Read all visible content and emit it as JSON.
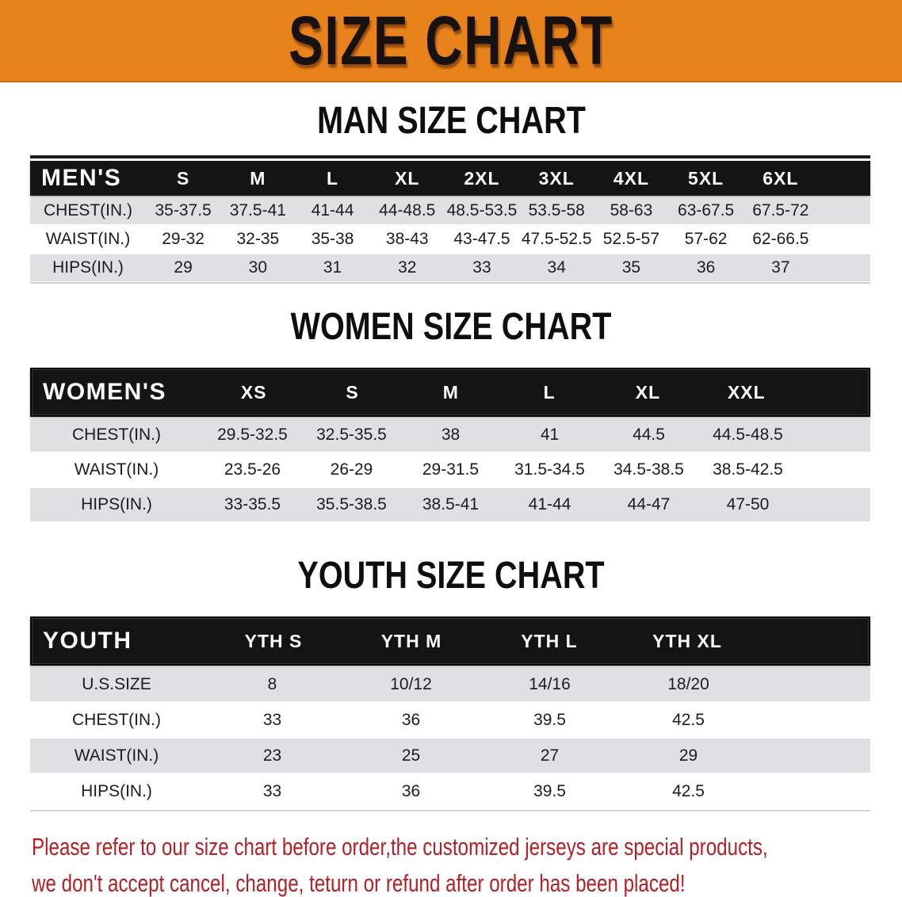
{
  "banner": {
    "title": "SIZE CHART"
  },
  "colors": {
    "banner_orange": "#E8831C",
    "header_black": "#141414",
    "row_gray": "#E0E0E3",
    "note_red": "#B32025"
  },
  "sections": [
    {
      "id": "men",
      "heading": "MAN SIZE CHART",
      "table": {
        "header": [
          "MEN'S",
          "S",
          "M",
          "L",
          "XL",
          "2XL",
          "3XL",
          "4XL",
          "5XL",
          "6XL"
        ],
        "rows": [
          [
            "CHEST(IN.)",
            "35-37.5",
            "37.5-41",
            "41-44",
            "44-48.5",
            "48.5-53.5",
            "53.5-58",
            "58-63",
            "63-67.5",
            "67.5-72"
          ],
          [
            "WAIST(IN.)",
            "29-32",
            "32-35",
            "35-38",
            "38-43",
            "43-47.5",
            "47.5-52.5",
            "52.5-57",
            "57-62",
            "62-66.5"
          ],
          [
            "HIPS(IN.)",
            "29",
            "30",
            "31",
            "32",
            "33",
            "34",
            "35",
            "36",
            "37"
          ]
        ],
        "row_shading": [
          "gray",
          "white",
          "gray"
        ]
      }
    },
    {
      "id": "women",
      "heading": "WOMEN SIZE CHART",
      "table": {
        "header": [
          "WOMEN'S",
          "XS",
          "S",
          "M",
          "L",
          "XL",
          "XXL"
        ],
        "rows": [
          [
            "CHEST(IN.)",
            "29.5-32.5",
            "32.5-35.5",
            "38",
            "41",
            "44.5",
            "44.5-48.5"
          ],
          [
            "WAIST(IN.)",
            "23.5-26",
            "26-29",
            "29-31.5",
            "31.5-34.5",
            "34.5-38.5",
            "38.5-42.5"
          ],
          [
            "HIPS(IN.)",
            "33-35.5",
            "35.5-38.5",
            "38.5-41",
            "41-44",
            "44-47",
            "47-50"
          ]
        ],
        "row_shading": [
          "gray",
          "white",
          "gray"
        ]
      }
    },
    {
      "id": "youth",
      "heading": "YOUTH SIZE CHART",
      "table": {
        "header": [
          "YOUTH",
          "YTH S",
          "YTH M",
          "YTH L",
          "YTH XL"
        ],
        "rows": [
          [
            "U.S.SIZE",
            "8",
            "10/12",
            "14/16",
            "18/20"
          ],
          [
            "CHEST(IN.)",
            "33",
            "36",
            "39.5",
            "42.5"
          ],
          [
            "WAIST(IN.)",
            "23",
            "25",
            "27",
            "29"
          ],
          [
            "HIPS(IN.)",
            "33",
            "36",
            "39.5",
            "42.5"
          ]
        ],
        "row_shading": [
          "gray",
          "white",
          "gray",
          "white"
        ]
      }
    }
  ],
  "footer_note": {
    "lines": [
      "Please refer to our size chart before order,the customized jerseys are special products,",
      "we don't accept cancel, change, teturn or refund after order has been placed!"
    ]
  }
}
